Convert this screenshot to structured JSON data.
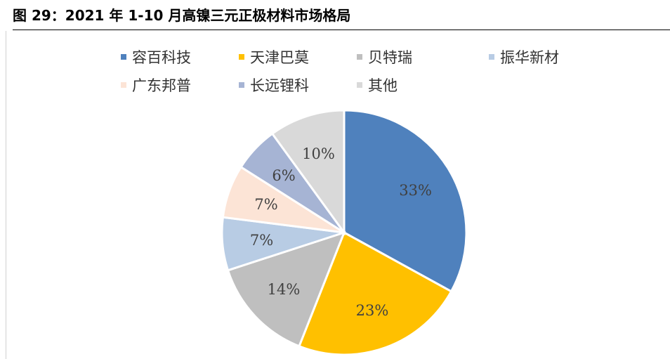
{
  "figure": {
    "title": "图 29：2021 年 1-10 月高镍三元正极材料市场格局"
  },
  "chart_data": {
    "type": "pie",
    "slices": [
      {
        "label": "容百科技",
        "value": 33,
        "label_text": "33%",
        "color": "#4F81BD"
      },
      {
        "label": "天津巴莫",
        "value": 23,
        "label_text": "23%",
        "color": "#FFC000"
      },
      {
        "label": "贝特瑞",
        "value": 14,
        "label_text": "14%",
        "color": "#BFBFBF"
      },
      {
        "label": "振华新材",
        "value": 7,
        "label_text": "7%",
        "color": "#B8CCE4"
      },
      {
        "label": "广东邦普",
        "value": 7,
        "label_text": "7%",
        "color": "#FCE4D6"
      },
      {
        "label": "长远锂科",
        "value": 6,
        "label_text": "6%",
        "color": "#A6B4D4"
      },
      {
        "label": "其他",
        "value": 10,
        "label_text": "10%",
        "color": "#D9D9D9"
      }
    ],
    "legend_position": "top",
    "start_angle": "12 o'clock",
    "direction": "clockwise"
  }
}
